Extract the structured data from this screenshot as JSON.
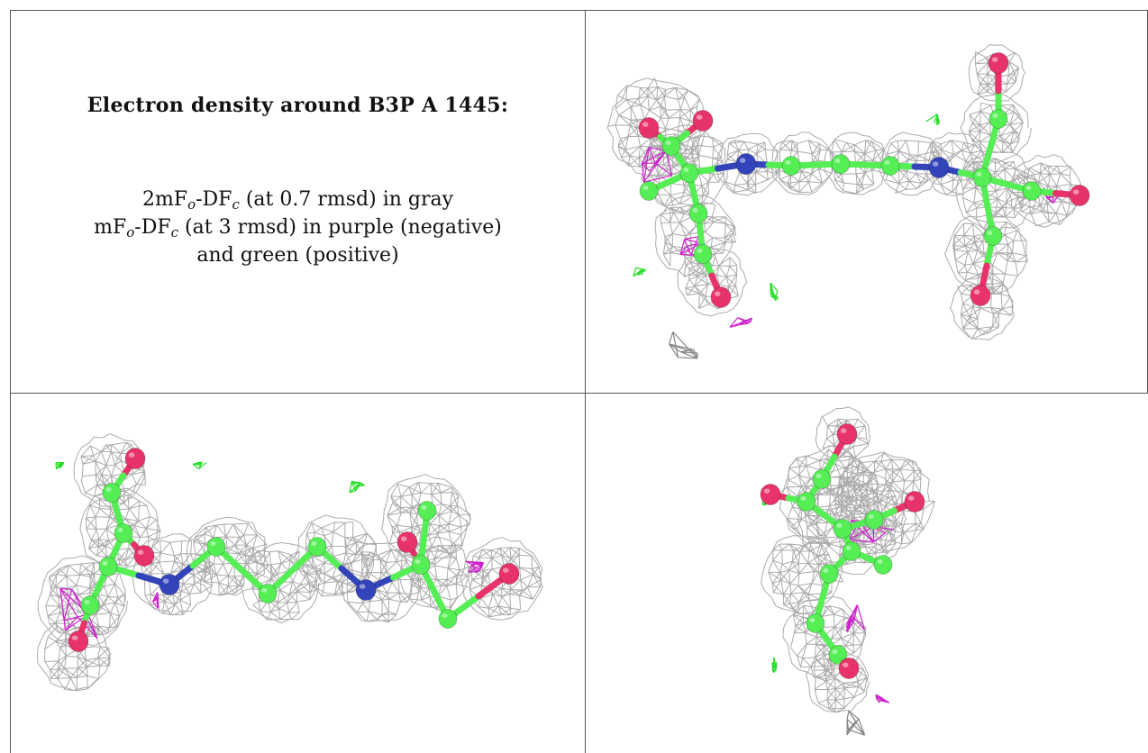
{
  "heading": "Electron density around B3P A 1445:",
  "legend": {
    "line1": {
      "base": "2mF",
      "sub1": "o",
      "mid": "-DF",
      "sub2": "c",
      "tail": " (at 0.7 rmsd) in gray"
    },
    "line2": {
      "base": "mF",
      "sub1": "o",
      "mid": "-DF",
      "sub2": "c",
      "tail": " (at 3 rmsd) in purple (negative)"
    },
    "line3": "and green (positive)"
  },
  "colors": {
    "mesh_2fofc": "#a6a6a6",
    "mesh_positive": "#22dd22",
    "mesh_negative": "#cc22cc",
    "carbon": "#55ee55",
    "nitrogen": "#3344bb",
    "oxygen": "#e8336a",
    "border": "#555555"
  },
  "panels": [
    {
      "id": "view-top-right",
      "contents": [
        "gray-density-mesh",
        "ball-and-stick-model",
        "negative-density",
        "positive-density"
      ]
    },
    {
      "id": "view-bottom-left",
      "contents": [
        "gray-density-mesh",
        "ball-and-stick-model",
        "negative-density",
        "positive-density"
      ]
    },
    {
      "id": "view-bottom-right",
      "contents": [
        "gray-density-mesh",
        "ball-and-stick-model",
        "negative-density",
        "positive-density"
      ]
    }
  ]
}
